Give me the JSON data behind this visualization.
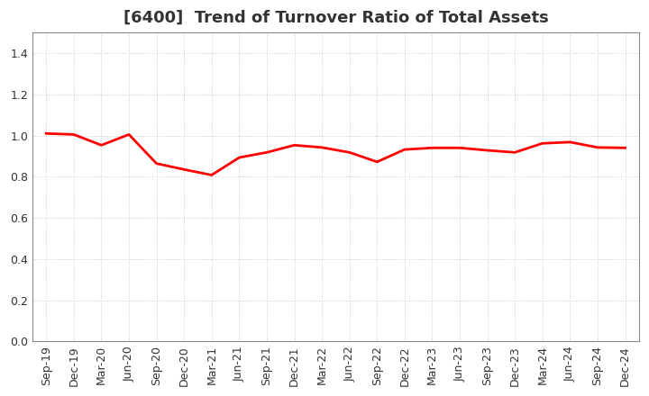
{
  "title": "[6400]  Trend of Turnover Ratio of Total Assets",
  "x_labels": [
    "Sep-19",
    "Dec-19",
    "Mar-20",
    "Jun-20",
    "Sep-20",
    "Dec-20",
    "Mar-21",
    "Jun-21",
    "Sep-21",
    "Dec-21",
    "Mar-22",
    "Jun-22",
    "Sep-22",
    "Dec-22",
    "Mar-23",
    "Jun-23",
    "Sep-23",
    "Dec-23",
    "Mar-24",
    "Jun-24",
    "Sep-24",
    "Dec-24"
  ],
  "y_values": [
    1.01,
    1.005,
    0.953,
    1.005,
    0.864,
    0.835,
    0.808,
    0.893,
    0.918,
    0.953,
    0.942,
    0.918,
    0.872,
    0.932,
    0.94,
    0.94,
    0.928,
    0.918,
    0.962,
    0.968,
    0.942,
    0.94
  ],
  "line_color": "#ff0000",
  "line_width": 2.0,
  "ylim": [
    0.0,
    1.5
  ],
  "yticks": [
    0.0,
    0.2,
    0.4,
    0.6,
    0.8,
    1.0,
    1.2,
    1.4
  ],
  "background_color": "#ffffff",
  "grid_color": "#bbbbbb",
  "title_fontsize": 13,
  "tick_fontsize": 9,
  "title_color": "#333333"
}
